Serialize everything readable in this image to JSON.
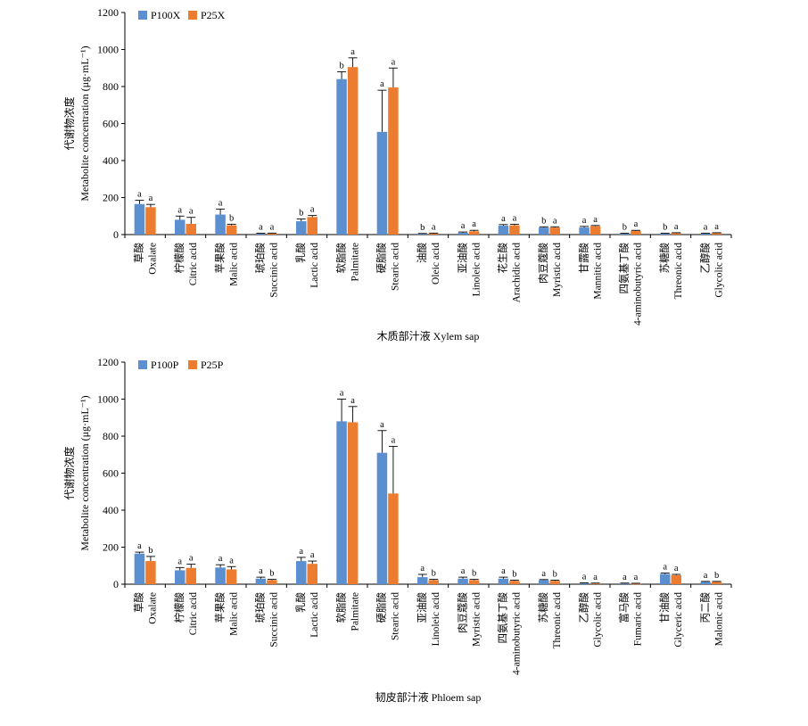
{
  "colors": {
    "series1": "#5b8fd0",
    "series2": "#ec7d30",
    "axis": "#000000"
  },
  "chart_data": [
    {
      "type": "bar",
      "title": "木质部汁液 Xylem sap",
      "ylabel_cn": "代谢物浓度",
      "ylabel_en": "Metabolite concentration (μg·mL⁻¹)",
      "ylim": [
        0,
        1200
      ],
      "yticks": [
        0,
        200,
        400,
        600,
        800,
        1000,
        1200
      ],
      "legend_position": "top-left",
      "categories_cn": [
        "草酸",
        "柠檬酸",
        "苹果酸",
        "琥珀酸",
        "乳酸",
        "软脂酸",
        "硬脂酸",
        "油酸",
        "亚油酸",
        "花生酸",
        "肉豆蔻酸",
        "甘露酸",
        "四氨基丁酸",
        "苏糖酸",
        "乙醇酸"
      ],
      "categories_en": [
        "Oxalate",
        "Citric acid",
        "Malic acid",
        "Succinic acid",
        "Lactic acid",
        "Palmitate",
        "Stearic acid",
        "Oleic acid",
        "Linoleic acid",
        "Arachidic acid",
        "Myristic acid",
        "Mannitic acid",
        "4-aminobutyric acid",
        "Threonic acid",
        "Glycolic acid"
      ],
      "series": [
        {
          "name": "P100X",
          "values": [
            165,
            80,
            108,
            5,
            72,
            840,
            555,
            4,
            10,
            48,
            38,
            38,
            5,
            5,
            5
          ],
          "errors": [
            20,
            20,
            30,
            2,
            12,
            40,
            225,
            2,
            4,
            6,
            4,
            6,
            2,
            2,
            2
          ],
          "letters": [
            "a",
            "a",
            "a",
            "a",
            "b",
            "b",
            "a",
            "b",
            "a",
            "a",
            "b",
            "a",
            "b",
            "b",
            "a"
          ]
        },
        {
          "name": "P25X",
          "values": [
            148,
            58,
            50,
            6,
            95,
            905,
            795,
            6,
            18,
            50,
            38,
            45,
            20,
            8,
            8
          ],
          "errors": [
            15,
            35,
            6,
            2,
            8,
            50,
            105,
            2,
            5,
            6,
            4,
            4,
            3,
            2,
            2
          ],
          "letters": [
            "a",
            "a",
            "b",
            "a",
            "a",
            "a",
            "a",
            "a",
            "a",
            "a",
            "a",
            "a",
            "a",
            "a",
            "a"
          ]
        }
      ]
    },
    {
      "type": "bar",
      "title": "韧皮部汁液 Phloem sap",
      "ylabel_cn": "代谢物浓度",
      "ylabel_en": "Metabolite concentration (μg·mL⁻¹)",
      "ylim": [
        0,
        1200
      ],
      "yticks": [
        0,
        200,
        400,
        600,
        800,
        1000,
        1200
      ],
      "legend_position": "top-left",
      "categories_cn": [
        "草酸",
        "柠檬酸",
        "苹果酸",
        "琥珀酸",
        "乳酸",
        "软脂酸",
        "硬脂酸",
        "亚油酸",
        "肉豆蔻酸",
        "四氨基丁酸",
        "苏糖酸",
        "乙醇酸",
        "富马酸",
        "甘油酸",
        "丙二酸"
      ],
      "categories_en": [
        "Oxalate",
        "Citric acid",
        "Malic acid",
        "Succinic acid",
        "Lactic acid",
        "Palmitate",
        "Stearic acid",
        "Linoleic acid",
        "Myristic acid",
        "4-aminobutyric acid",
        "Threonic acid",
        "Glycolic acid",
        "Fumaric acid",
        "Glyceric acid",
        "Malonic acid"
      ],
      "series": [
        {
          "name": "P100P",
          "values": [
            165,
            75,
            90,
            30,
            125,
            880,
            710,
            38,
            30,
            30,
            22,
            5,
            4,
            55,
            12
          ],
          "errors": [
            8,
            15,
            15,
            8,
            20,
            120,
            120,
            15,
            8,
            8,
            3,
            2,
            2,
            5,
            3
          ],
          "letters": [
            "a",
            "a",
            "a",
            "a",
            "a",
            "a",
            "a",
            "a",
            "a",
            "a",
            "a",
            "a",
            "a",
            "a",
            "a"
          ]
        },
        {
          "name": "P25P",
          "values": [
            125,
            88,
            80,
            22,
            110,
            875,
            490,
            22,
            22,
            18,
            18,
            4,
            3,
            48,
            12
          ],
          "errors": [
            25,
            20,
            15,
            4,
            15,
            85,
            255,
            4,
            4,
            4,
            4,
            2,
            2,
            5,
            3
          ],
          "letters": [
            "b",
            "a",
            "a",
            "b",
            "a",
            "a",
            "a",
            "b",
            "b",
            "b",
            "b",
            "a",
            "a",
            "a",
            "b"
          ]
        }
      ]
    }
  ]
}
